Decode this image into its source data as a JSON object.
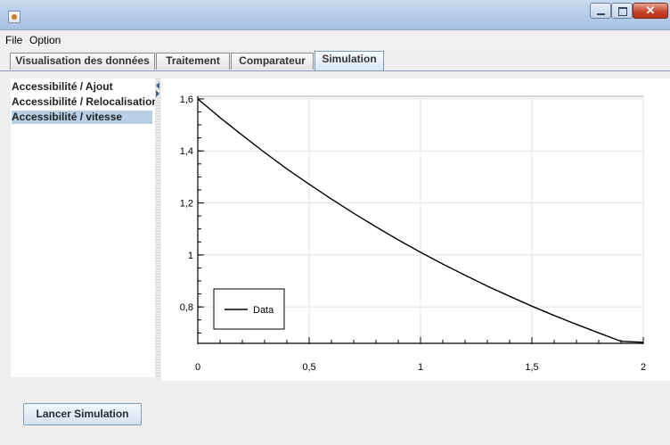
{
  "menubar": {
    "file": "File",
    "option": "Option"
  },
  "tabs": [
    {
      "label": "Visualisation des données",
      "active": false
    },
    {
      "label": "Traitement",
      "active": false
    },
    {
      "label": "Comparateur",
      "active": false
    },
    {
      "label": "Simulation",
      "active": true
    }
  ],
  "left_list": {
    "items": [
      {
        "label": "Accessibilité / Ajout",
        "selected": false
      },
      {
        "label": "Accessibilité / Relocalisation",
        "selected": false
      },
      {
        "label": "Accessibilité / vitesse",
        "selected": true
      }
    ]
  },
  "chart_data": {
    "type": "line",
    "title": "",
    "xlabel": "",
    "ylabel": "",
    "xlim": [
      0,
      2
    ],
    "ylim": [
      0.66,
      1.61
    ],
    "x_ticks": [
      "0",
      "0,5",
      "1",
      "1,5",
      "2"
    ],
    "y_ticks": [
      "0,8",
      "1",
      "1,2",
      "1,4",
      "1,6"
    ],
    "grid": true,
    "legend_position": "bottom-left",
    "series": [
      {
        "name": "Data",
        "color": "#000000",
        "x": [
          0,
          0.1,
          0.2,
          0.3,
          0.4,
          0.5,
          0.6,
          0.7,
          0.8,
          0.9,
          1.0,
          1.1,
          1.2,
          1.3,
          1.4,
          1.5,
          1.6,
          1.7,
          1.8,
          1.9,
          2.0
        ],
        "y": [
          1.6,
          1.528,
          1.46,
          1.394,
          1.331,
          1.272,
          1.215,
          1.16,
          1.108,
          1.058,
          1.01,
          0.965,
          0.922,
          0.88,
          0.841,
          0.803,
          0.767,
          0.733,
          0.7,
          0.668,
          0.664
        ]
      }
    ]
  },
  "actions": {
    "run_label": "Lancer Simulation"
  }
}
